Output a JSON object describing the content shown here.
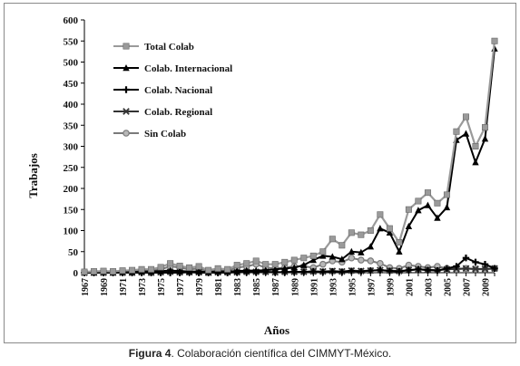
{
  "caption": {
    "label": "Figura 4",
    "text": ". Colaboración científica del CIMMYT-México."
  },
  "chart_data": {
    "type": "line",
    "xlabel": "Años",
    "ylabel": "Trabajos",
    "ylim": [
      0,
      600
    ],
    "yticks": [
      0,
      50,
      100,
      150,
      200,
      250,
      300,
      350,
      400,
      450,
      500,
      550,
      600
    ],
    "x": [
      1967,
      1968,
      1969,
      1970,
      1971,
      1972,
      1973,
      1974,
      1975,
      1976,
      1977,
      1978,
      1979,
      1980,
      1981,
      1982,
      1983,
      1984,
      1985,
      1986,
      1987,
      1988,
      1989,
      1990,
      1991,
      1992,
      1993,
      1994,
      1995,
      1996,
      1997,
      1998,
      1999,
      2000,
      2001,
      2002,
      2003,
      2004,
      2005,
      2006,
      2007,
      2008,
      2009,
      2010
    ],
    "xtick_labels": [
      "1967",
      "1969",
      "1971",
      "1973",
      "1975",
      "1977",
      "1979",
      "1981",
      "1983",
      "1985",
      "1987",
      "1989",
      "1991",
      "1993",
      "1995",
      "1997",
      "1999",
      "2001",
      "2003",
      "2005",
      "2007",
      "2009"
    ],
    "grid": false,
    "legend_position": "top-left",
    "series": [
      {
        "name": "Total Colab",
        "color": "#9a9a9a",
        "marker": "square",
        "values": [
          2,
          3,
          4,
          3,
          5,
          6,
          8,
          8,
          13,
          22,
          16,
          12,
          15,
          6,
          10,
          8,
          18,
          22,
          28,
          20,
          20,
          25,
          30,
          35,
          40,
          50,
          80,
          65,
          95,
          90,
          100,
          138,
          105,
          72,
          150,
          170,
          190,
          165,
          185,
          335,
          370,
          300,
          345,
          550
        ]
      },
      {
        "name": "Colab. Internacional",
        "color": "#000000",
        "marker": "triangle",
        "values": [
          1,
          1,
          2,
          1,
          2,
          2,
          3,
          3,
          4,
          5,
          4,
          3,
          3,
          2,
          3,
          3,
          4,
          5,
          5,
          6,
          8,
          10,
          12,
          18,
          30,
          40,
          38,
          32,
          50,
          48,
          62,
          105,
          95,
          50,
          110,
          148,
          160,
          130,
          155,
          315,
          330,
          262,
          318,
          532
        ]
      },
      {
        "name": "Colab. Nacional",
        "color": "#000000",
        "marker": "plus",
        "values": [
          0,
          0,
          0,
          0,
          0,
          0,
          0,
          0,
          0,
          0,
          0,
          1,
          0,
          0,
          0,
          0,
          1,
          1,
          1,
          2,
          1,
          1,
          2,
          2,
          3,
          2,
          3,
          2,
          4,
          3,
          5,
          6,
          4,
          3,
          6,
          8,
          6,
          5,
          10,
          15,
          35,
          25,
          20,
          10
        ]
      },
      {
        "name": "Colab. Regional",
        "color": "#333333",
        "marker": "cross",
        "values": [
          0,
          0,
          0,
          0,
          0,
          0,
          1,
          0,
          1,
          2,
          1,
          1,
          1,
          0,
          1,
          1,
          1,
          2,
          2,
          2,
          1,
          2,
          2,
          2,
          3,
          3,
          4,
          3,
          5,
          4,
          5,
          6,
          5,
          4,
          6,
          8,
          7,
          6,
          8,
          9,
          10,
          9,
          9,
          10
        ]
      },
      {
        "name": "Sin Colab",
        "color": "#7a7a7a",
        "marker": "circle",
        "values": [
          1,
          2,
          2,
          2,
          3,
          4,
          5,
          5,
          8,
          15,
          12,
          8,
          10,
          4,
          6,
          5,
          12,
          15,
          20,
          12,
          10,
          12,
          15,
          15,
          12,
          20,
          28,
          25,
          35,
          30,
          28,
          22,
          12,
          10,
          18,
          15,
          12,
          15,
          10,
          8,
          10,
          8,
          8,
          10
        ]
      }
    ]
  }
}
